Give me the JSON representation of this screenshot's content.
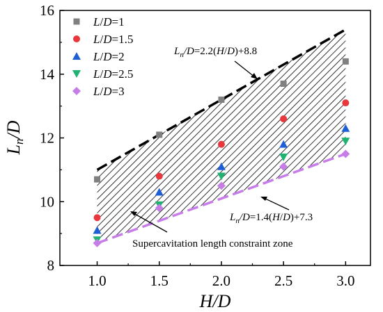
{
  "chart_data": {
    "type": "scatter",
    "title": "",
    "xlabel": "H/D",
    "ylabel": "Ln/D",
    "xlim": [
      0.7,
      3.2
    ],
    "ylim": [
      8,
      16
    ],
    "x_ticks": [
      1.0,
      1.5,
      2.0,
      2.5,
      3.0
    ],
    "x_tick_labels": [
      "1.0",
      "1.5",
      "2.0",
      "2.5",
      "3.0"
    ],
    "y_ticks": [
      8,
      10,
      12,
      14,
      16
    ],
    "y_tick_labels": [
      "8",
      "10",
      "12",
      "14",
      "16"
    ],
    "grid": false,
    "legend_position": "top-left",
    "x": [
      1.0,
      1.5,
      2.0,
      2.5,
      3.0
    ],
    "series": [
      {
        "name": "L/D=1",
        "marker": "square",
        "color": "#808080",
        "values": [
          10.7,
          12.1,
          13.2,
          13.7,
          14.4
        ]
      },
      {
        "name": "L/D=1.5",
        "marker": "circle",
        "color": "#e8383d",
        "values": [
          9.5,
          10.8,
          11.8,
          12.6,
          13.1
        ]
      },
      {
        "name": "L/D=2",
        "marker": "triangle-up",
        "color": "#1f5fd6",
        "values": [
          9.1,
          10.3,
          11.1,
          11.8,
          12.3
        ]
      },
      {
        "name": "L/D=2.5",
        "marker": "triangle-down",
        "color": "#1fb270",
        "values": [
          8.8,
          9.9,
          10.8,
          11.4,
          11.9
        ]
      },
      {
        "name": "L/D=3",
        "marker": "diamond",
        "color": "#c77de8",
        "values": [
          8.7,
          9.8,
          10.5,
          11.1,
          11.5
        ]
      }
    ],
    "fit_lines": [
      {
        "label": "Ln/D=2.2(H/D)+8.8",
        "slope": 2.2,
        "intercept": 8.8,
        "color": "#000000",
        "style": "dashed",
        "x_range": [
          1.0,
          3.0
        ]
      },
      {
        "label": "Ln/D=1.4(H/D)+7.3",
        "slope": 1.4,
        "intercept": 7.3,
        "color": "#c77de8",
        "style": "dashed",
        "x_range": [
          1.0,
          3.0
        ]
      }
    ],
    "annotations": {
      "upper_line": "Ln/D=2.2(H/D)+8.8",
      "lower_line": "Ln/D=1.4(H/D)+7.3",
      "zone": "Supercavitation length constraint zone"
    }
  }
}
